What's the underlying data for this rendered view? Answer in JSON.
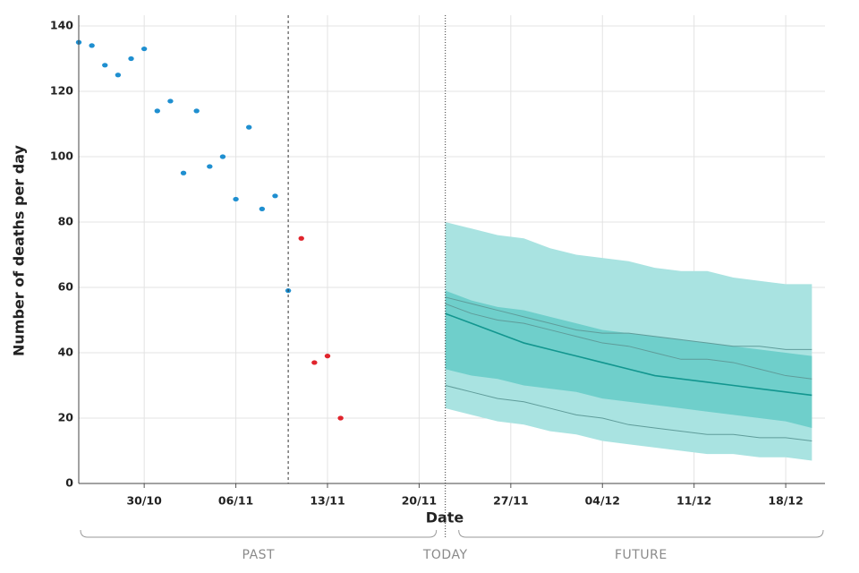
{
  "chart_data": {
    "type": "line",
    "xlabel": "Date",
    "ylabel": "Number of deaths per day",
    "xlim": [
      "25/10",
      "21/12"
    ],
    "ylim": [
      0,
      140
    ],
    "yticks": [
      0,
      20,
      40,
      60,
      80,
      100,
      120,
      140
    ],
    "xticks": [
      "30/10",
      "06/11",
      "13/11",
      "20/11",
      "27/11",
      "04/12",
      "11/12",
      "18/12"
    ],
    "grid": true,
    "series": [
      {
        "kind": "scatter",
        "color": "#1f8fd0",
        "x": [
          "25/10",
          "26/10",
          "27/10",
          "28/10",
          "29/10",
          "30/10",
          "31/10",
          "01/11",
          "02/11",
          "03/11",
          "04/11",
          "05/11",
          "06/11",
          "07/11",
          "08/11",
          "09/11",
          "10/11"
        ],
        "values": [
          135,
          134,
          128,
          125,
          130,
          133,
          114,
          117,
          95,
          114,
          97,
          100,
          87,
          109,
          84,
          88,
          59
        ]
      },
      {
        "kind": "scatter",
        "color": "#e0242c",
        "x": [
          "11/11",
          "12/11",
          "13/11",
          "14/11"
        ],
        "values": [
          75,
          37,
          39,
          20
        ]
      },
      {
        "kind": "line",
        "color": "#5f9c9a",
        "width": 1,
        "x": [
          "22/11",
          "24/11",
          "26/11",
          "28/11",
          "30/11",
          "02/12",
          "04/12",
          "06/12",
          "08/12",
          "10/12",
          "12/12",
          "14/12",
          "16/12",
          "18/12",
          "20/12"
        ],
        "values": [
          57,
          55,
          53,
          51,
          49,
          47,
          46,
          46,
          45,
          44,
          43,
          42,
          42,
          41,
          41
        ]
      },
      {
        "kind": "line",
        "color": "#5f9c9a",
        "width": 1,
        "x": [
          "22/11",
          "24/11",
          "26/11",
          "28/11",
          "30/11",
          "02/12",
          "04/12",
          "06/12",
          "08/12",
          "10/12",
          "12/12",
          "14/12",
          "16/12",
          "18/12",
          "20/12"
        ],
        "values": [
          55,
          52,
          50,
          49,
          47,
          45,
          43,
          42,
          40,
          38,
          38,
          37,
          35,
          33,
          32
        ]
      },
      {
        "kind": "line",
        "color": "#5f9c9a",
        "width": 1,
        "x": [
          "22/11",
          "24/11",
          "26/11",
          "28/11",
          "30/11",
          "02/12",
          "04/12",
          "06/12",
          "08/12",
          "10/12",
          "12/12",
          "14/12",
          "16/12",
          "18/12",
          "20/12"
        ],
        "values": [
          30,
          28,
          26,
          25,
          23,
          21,
          20,
          18,
          17,
          16,
          15,
          15,
          14,
          14,
          13
        ]
      },
      {
        "kind": "line",
        "color": "#12968f",
        "width": 1.6,
        "x": [
          "22/11",
          "24/11",
          "26/11",
          "28/11",
          "30/11",
          "02/12",
          "04/12",
          "06/12",
          "08/12",
          "10/12",
          "12/12",
          "14/12",
          "16/12",
          "18/12",
          "20/12"
        ],
        "values": [
          52,
          49,
          46,
          43,
          41,
          39,
          37,
          35,
          33,
          32,
          31,
          30,
          29,
          28,
          27
        ]
      }
    ],
    "bands": [
      {
        "color": "#a9e3e1",
        "x": [
          "22/11",
          "24/11",
          "26/11",
          "28/11",
          "30/11",
          "02/12",
          "04/12",
          "06/12",
          "08/12",
          "10/12",
          "12/12",
          "14/12",
          "16/12",
          "18/12",
          "20/12"
        ],
        "upper": [
          80,
          78,
          76,
          75,
          72,
          70,
          69,
          68,
          66,
          65,
          65,
          63,
          62,
          61,
          61
        ],
        "lower": [
          23,
          21,
          19,
          18,
          16,
          15,
          13,
          12,
          11,
          10,
          9,
          9,
          8,
          8,
          7
        ]
      },
      {
        "color": "#6fcfcb",
        "x": [
          "22/11",
          "24/11",
          "26/11",
          "28/11",
          "30/11",
          "02/12",
          "04/12",
          "06/12",
          "08/12",
          "10/12",
          "12/12",
          "14/12",
          "16/12",
          "18/12",
          "20/12"
        ],
        "upper": [
          59,
          56,
          54,
          53,
          51,
          49,
          47,
          46,
          45,
          44,
          43,
          42,
          41,
          40,
          39
        ],
        "lower": [
          35,
          33,
          32,
          30,
          29,
          28,
          26,
          25,
          24,
          23,
          22,
          21,
          20,
          19,
          17
        ]
      }
    ],
    "markers": [
      {
        "x": "10/11",
        "dash": "3,3"
      },
      {
        "x": "22/11",
        "dash": "1,2"
      }
    ],
    "annotations": [
      "PAST",
      "TODAY",
      "FUTURE"
    ]
  }
}
